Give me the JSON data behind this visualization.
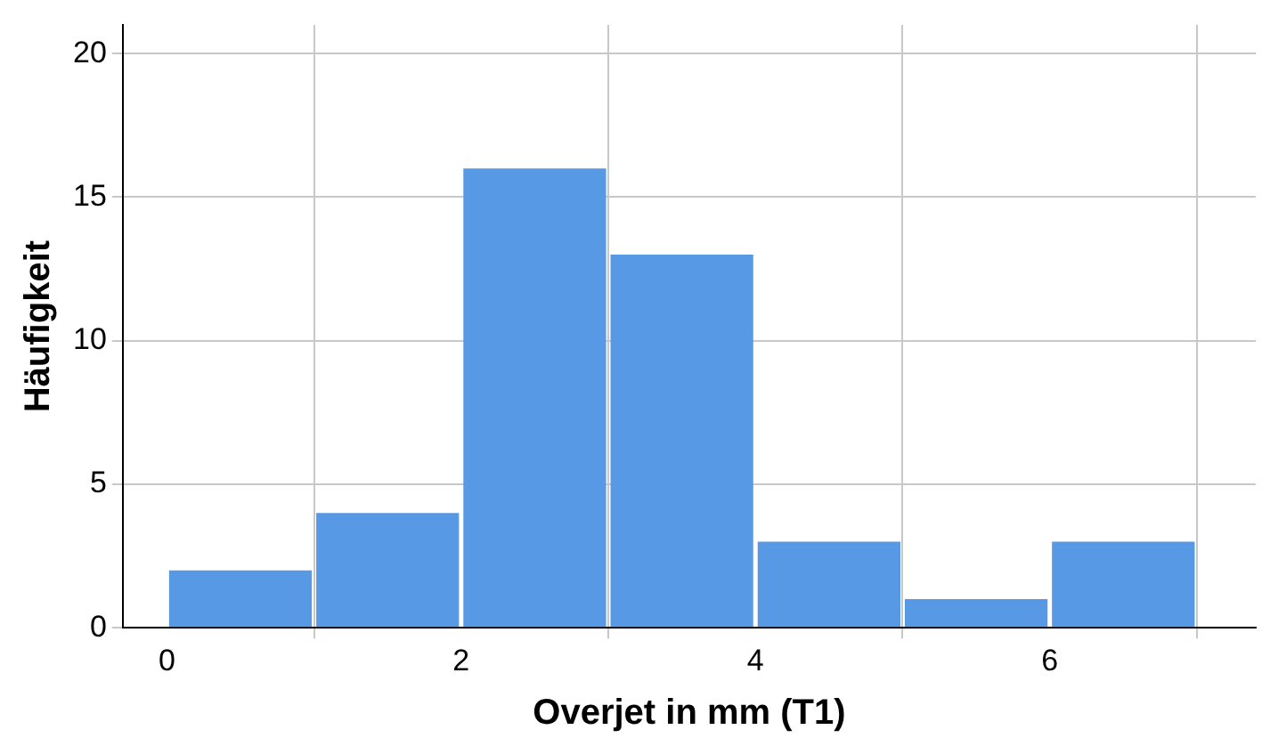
{
  "chart_data": {
    "type": "histogram",
    "xlabel": "Overjet in mm (T1)",
    "ylabel": "Häufigkeit",
    "bins": [
      0,
      1,
      2,
      3,
      4,
      5,
      6,
      7
    ],
    "values": [
      2,
      4,
      16,
      13,
      3,
      1,
      3
    ],
    "color": "#5899e6",
    "xlim": [
      -0.3,
      7.4
    ],
    "xticks": [
      0,
      2,
      4,
      6
    ],
    "ylim": [
      0,
      21
    ],
    "yticks": [
      0,
      5,
      10,
      15,
      20
    ],
    "grid": true
  }
}
